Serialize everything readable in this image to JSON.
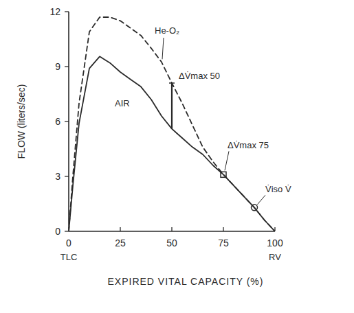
{
  "chart_data": {
    "type": "line",
    "x_label": "EXPIRED VITAL CAPACITY (%)",
    "y_label": "FLOW (liters/sec)",
    "x_end_labels": [
      "TLC",
      "RV"
    ],
    "x": [
      0,
      2,
      5,
      10,
      15,
      20,
      25,
      30,
      35,
      40,
      45,
      50,
      55,
      60,
      65,
      70,
      75,
      80,
      85,
      90,
      95,
      100
    ],
    "series": [
      {
        "name": "AIR",
        "color": "#2a2a2a",
        "line_style": "solid",
        "values": [
          0,
          2.5,
          5.9,
          8.9,
          9.55,
          9.2,
          8.7,
          8.3,
          7.9,
          7.2,
          6.3,
          5.6,
          5.1,
          4.6,
          4.2,
          3.6,
          3.1,
          2.5,
          1.9,
          1.3,
          0.6,
          0
        ]
      },
      {
        "name": "He-O₂",
        "color": "#2a2a2a",
        "line_style": "dashed",
        "values": [
          0,
          3,
          7,
          10.9,
          11.7,
          11.7,
          11.5,
          11.1,
          10.7,
          10.0,
          9.25,
          8.1,
          7.0,
          5.8,
          4.6,
          3.8,
          3.1,
          2.5,
          1.9,
          1.3,
          0.6,
          0
        ]
      }
    ],
    "annotations": [
      {
        "text": "ΔV̇max 50",
        "x": 50
      },
      {
        "text": "ΔV̇max 75",
        "x": 75
      },
      {
        "text": "V̇iso V̇",
        "x": 90
      }
    ],
    "xlim": [
      0,
      100
    ],
    "xticks": [
      0,
      25,
      50,
      75,
      100
    ],
    "ylim": [
      0,
      12
    ],
    "yticks": [
      0,
      3,
      6,
      9,
      12
    ],
    "grid": false
  }
}
